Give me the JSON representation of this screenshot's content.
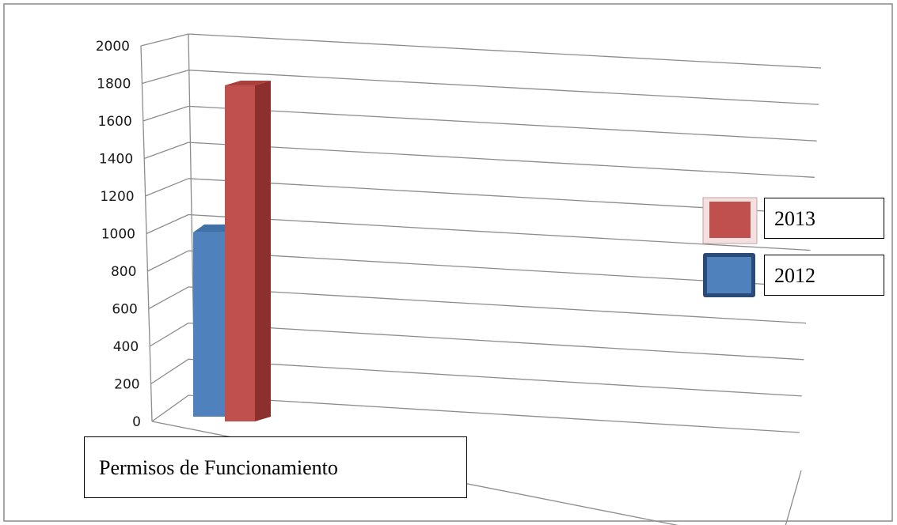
{
  "chart_data": {
    "type": "bar",
    "style": "3d-clustered-column",
    "categories": [
      "Permisos de Funcionamiento"
    ],
    "series": [
      {
        "name": "2012",
        "color": "#4f81bd",
        "values": [
          1020
        ]
      },
      {
        "name": "2013",
        "color": "#c0504d",
        "values": [
          1860
        ]
      }
    ],
    "ylim": [
      0,
      2000
    ],
    "yticks": [
      "0",
      "200",
      "400",
      "600",
      "800",
      "1000",
      "1200",
      "1400",
      "1600",
      "1800",
      "2000"
    ],
    "grid": true,
    "legend": "right"
  }
}
